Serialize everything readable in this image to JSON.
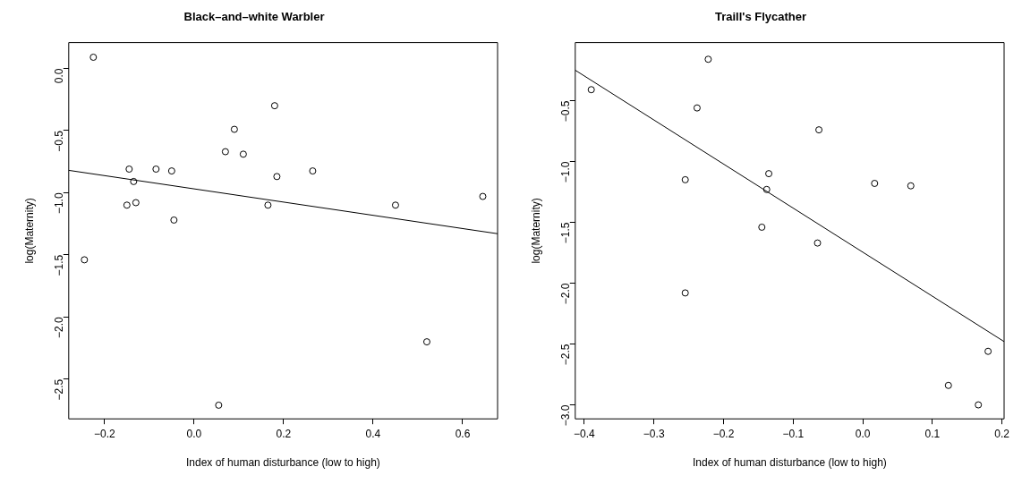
{
  "chart_data": [
    {
      "type": "scatter",
      "title": "Black–and–white Warbler",
      "xlabel": "Index of human disturbance (low to high)",
      "ylabel": "log(Maternity)",
      "xlim": [
        -0.28,
        0.678
      ],
      "ylim": [
        -2.82,
        0.208
      ],
      "xticks": [
        {
          "value": -0.2,
          "label": "−0.2"
        },
        {
          "value": 0,
          "label": "0.0"
        },
        0.2,
        0.4,
        0.6
      ],
      "yticks": [
        {
          "value": -2.5,
          "label": "−2.5"
        },
        {
          "value": -2.0,
          "label": "−2.0"
        },
        {
          "value": -1.5,
          "label": "−1.5"
        },
        {
          "value": -1.0,
          "label": "−1.0"
        },
        {
          "value": -0.5,
          "label": "−0.5"
        },
        {
          "value": 0,
          "label": "0.0"
        }
      ],
      "series": [
        {
          "type": "scatter",
          "color": "#000000",
          "marker": "circle",
          "x": [
            -0.245,
            -0.225,
            -0.145,
            -0.15,
            -0.135,
            -0.13,
            -0.085,
            -0.05,
            -0.045,
            0.055,
            0.07,
            0.09,
            0.11,
            0.165,
            0.18,
            0.185,
            0.265,
            0.45,
            0.52,
            0.645
          ],
          "values": [
            -1.54,
            0.09,
            -0.81,
            -1.1,
            -0.91,
            -1.08,
            -0.81,
            -0.825,
            -1.22,
            -2.71,
            -0.67,
            -0.49,
            -0.69,
            -1.1,
            -0.3,
            -0.87,
            -0.825,
            -1.1,
            -2.2,
            -1.03
          ]
        },
        {
          "type": "line",
          "color": "#000000",
          "x": [
            -0.28,
            0.678
          ],
          "values": [
            -0.82,
            -1.33
          ]
        }
      ]
    },
    {
      "type": "scatter",
      "title": "Traill's Flycather",
      "xlabel": "Index of human disturbance (low to high)",
      "ylabel": "log(Maternity)",
      "xlim": [
        -0.413,
        0.203
      ],
      "ylim": [
        -3.115,
        -0.023
      ],
      "xticks": [
        {
          "value": -0.4,
          "label": "−0.4"
        },
        {
          "value": -0.3,
          "label": "−0.3"
        },
        {
          "value": -0.2,
          "label": "−0.2"
        },
        {
          "value": -0.1,
          "label": "−0.1"
        },
        {
          "value": 0,
          "label": "0.0"
        },
        0.1,
        0.2
      ],
      "yticks": [
        {
          "value": -3.0,
          "label": "−3.0"
        },
        {
          "value": -2.5,
          "label": "−2.5"
        },
        {
          "value": -2.0,
          "label": "−2.0"
        },
        {
          "value": -1.5,
          "label": "−1.5"
        },
        {
          "value": -1.0,
          "label": "−1.0"
        },
        {
          "value": -0.5,
          "label": "−0.5"
        }
      ],
      "series": [
        {
          "type": "scatter",
          "color": "#000000",
          "marker": "circle",
          "x": [
            -0.39,
            -0.255,
            -0.255,
            -0.238,
            -0.222,
            -0.145,
            -0.138,
            -0.135,
            -0.065,
            -0.063,
            0.017,
            0.069,
            0.123,
            0.166,
            0.18
          ],
          "values": [
            -0.41,
            -1.15,
            -2.08,
            -0.56,
            -0.16,
            -1.54,
            -1.23,
            -1.1,
            -1.67,
            -0.74,
            -1.18,
            -1.2,
            -2.84,
            -3.0,
            -2.56
          ]
        },
        {
          "type": "line",
          "color": "#000000",
          "x": [
            -0.413,
            0.203
          ],
          "values": [
            -0.25,
            -2.48
          ]
        }
      ]
    }
  ]
}
